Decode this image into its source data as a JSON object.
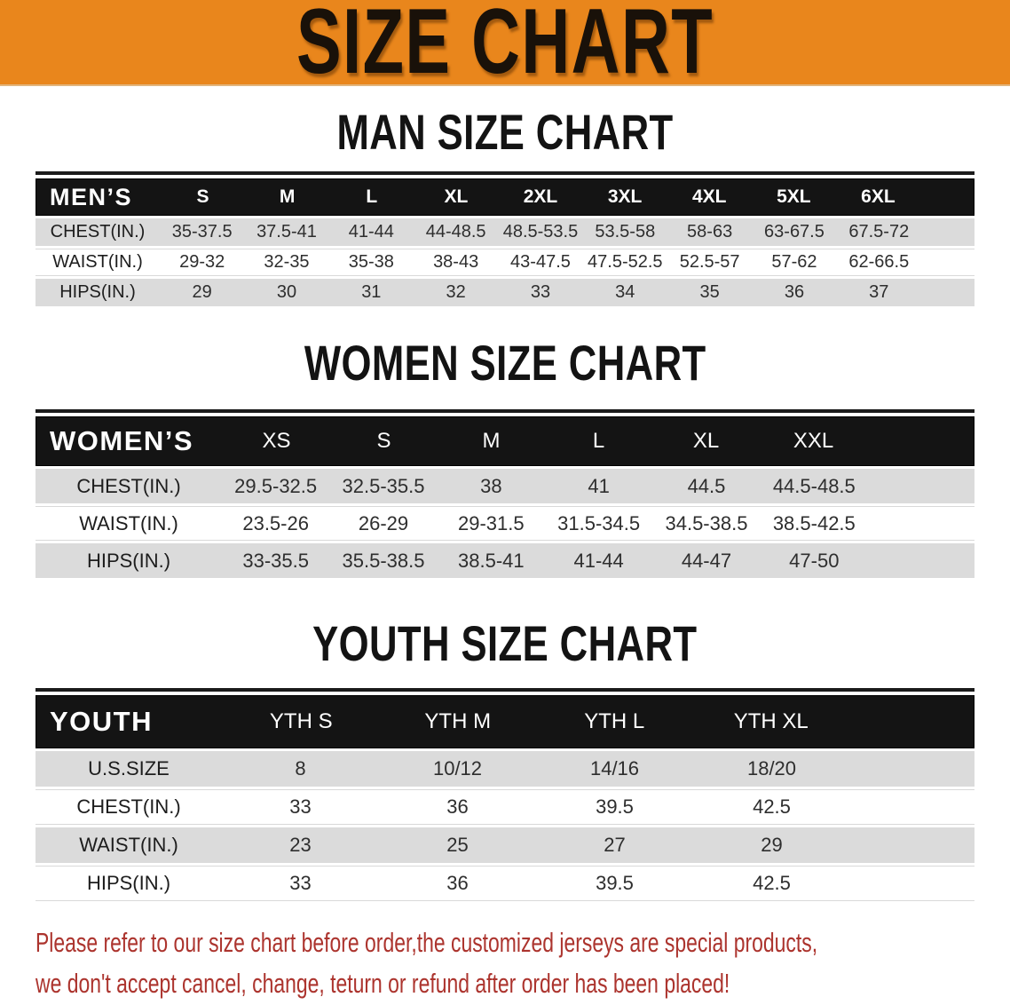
{
  "banner": {
    "title": "SIZE CHART"
  },
  "chart_data": [
    {
      "type": "table",
      "title": "MAN SIZE CHART",
      "header_label": "MEN’S",
      "columns": [
        "S",
        "M",
        "L",
        "XL",
        "2XL",
        "3XL",
        "4XL",
        "5XL",
        "6XL"
      ],
      "rows": [
        {
          "label": "CHEST(IN.)",
          "values": [
            "35-37.5",
            "37.5-41",
            "41-44",
            "44-48.5",
            "48.5-53.5",
            "53.5-58",
            "58-63",
            "63-67.5",
            "67.5-72"
          ]
        },
        {
          "label": "WAIST(IN.)",
          "values": [
            "29-32",
            "32-35",
            "35-38",
            "38-43",
            "43-47.5",
            "47.5-52.5",
            "52.5-57",
            "57-62",
            "62-66.5"
          ]
        },
        {
          "label": "HIPS(IN.)",
          "values": [
            "29",
            "30",
            "31",
            "32",
            "33",
            "34",
            "35",
            "36",
            "37"
          ]
        }
      ]
    },
    {
      "type": "table",
      "title": "WOMEN SIZE CHART",
      "header_label": "WOMEN’S",
      "columns": [
        "XS",
        "S",
        "M",
        "L",
        "XL",
        "XXL"
      ],
      "rows": [
        {
          "label": "CHEST(IN.)",
          "values": [
            "29.5-32.5",
            "32.5-35.5",
            "38",
            "41",
            "44.5",
            "44.5-48.5"
          ]
        },
        {
          "label": "WAIST(IN.)",
          "values": [
            "23.5-26",
            "26-29",
            "29-31.5",
            "31.5-34.5",
            "34.5-38.5",
            "38.5-42.5"
          ]
        },
        {
          "label": "HIPS(IN.)",
          "values": [
            "33-35.5",
            "35.5-38.5",
            "38.5-41",
            "41-44",
            "44-47",
            "47-50"
          ]
        }
      ]
    },
    {
      "type": "table",
      "title": "YOUTH SIZE CHART",
      "header_label": "YOUTH",
      "columns": [
        "YTH S",
        "YTH M",
        "YTH L",
        "YTH XL"
      ],
      "rows": [
        {
          "label": "U.S.SIZE",
          "values": [
            "8",
            "10/12",
            "14/16",
            "18/20"
          ]
        },
        {
          "label": "CHEST(IN.)",
          "values": [
            "33",
            "36",
            "39.5",
            "42.5"
          ]
        },
        {
          "label": "WAIST(IN.)",
          "values": [
            "23",
            "25",
            "27",
            "29"
          ]
        },
        {
          "label": "HIPS(IN.)",
          "values": [
            "33",
            "36",
            "39.5",
            "42.5"
          ]
        }
      ]
    }
  ],
  "footer": {
    "line1": "Please refer to our size chart before order,the customized jerseys are special products,",
    "line2": "we don't accept cancel, change, teturn or refund after order has been placed!"
  },
  "colors": {
    "banner_orange": "#E9861C",
    "header_black": "#141414",
    "row_gray": "#DBDBDB",
    "footer_red": "#AC342E"
  }
}
